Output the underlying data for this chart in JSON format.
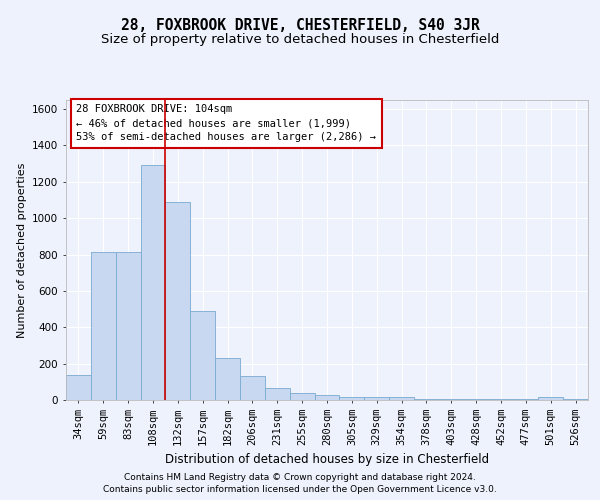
{
  "title": "28, FOXBROOK DRIVE, CHESTERFIELD, S40 3JR",
  "subtitle": "Size of property relative to detached houses in Chesterfield",
  "xlabel": "Distribution of detached houses by size in Chesterfield",
  "ylabel": "Number of detached properties",
  "footer_line1": "Contains HM Land Registry data © Crown copyright and database right 2024.",
  "footer_line2": "Contains public sector information licensed under the Open Government Licence v3.0.",
  "annotation_line1": "28 FOXBROOK DRIVE: 104sqm",
  "annotation_line2": "← 46% of detached houses are smaller (1,999)",
  "annotation_line3": "53% of semi-detached houses are larger (2,286) →",
  "bar_labels": [
    "34sqm",
    "59sqm",
    "83sqm",
    "108sqm",
    "132sqm",
    "157sqm",
    "182sqm",
    "206sqm",
    "231sqm",
    "255sqm",
    "280sqm",
    "305sqm",
    "329sqm",
    "354sqm",
    "378sqm",
    "403sqm",
    "428sqm",
    "452sqm",
    "477sqm",
    "501sqm",
    "526sqm"
  ],
  "bar_values": [
    140,
    815,
    815,
    1295,
    1090,
    490,
    230,
    130,
    65,
    38,
    28,
    15,
    15,
    15,
    5,
    5,
    5,
    5,
    5,
    18,
    5
  ],
  "bar_color": "#c8d8f0",
  "bar_edge_color": "#7aaad0",
  "red_line_index": 3,
  "red_line_color": "#cc0000",
  "annotation_box_edge_color": "#cc0000",
  "background_color": "#eef2fc",
  "plot_bg_color": "#eef2fc",
  "grid_color": "#ffffff",
  "ylim": [
    0,
    1650
  ],
  "yticks": [
    0,
    200,
    400,
    600,
    800,
    1000,
    1200,
    1400,
    1600
  ],
  "title_fontsize": 10.5,
  "subtitle_fontsize": 9.5,
  "xlabel_fontsize": 8.5,
  "ylabel_fontsize": 8,
  "tick_fontsize": 7.5,
  "annotation_fontsize": 7.5,
  "footer_fontsize": 6.5
}
